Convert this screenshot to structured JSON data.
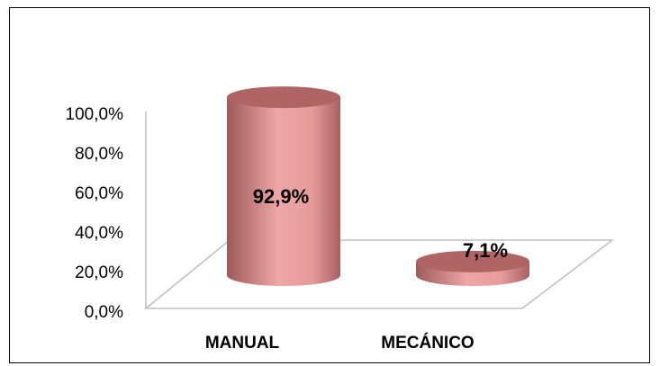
{
  "chart_data": {
    "type": "bar",
    "style": "3d-cylinder",
    "categories": [
      "MANUAL",
      "MECÁNICO"
    ],
    "values": [
      92.9,
      7.1
    ],
    "data_labels": [
      "92,9%",
      "7,1%"
    ],
    "y_ticks": [
      "0,0%",
      "20,0%",
      "40,0%",
      "60,0%",
      "80,0%",
      "100,0%"
    ],
    "ylim": [
      0,
      100
    ],
    "title": "",
    "xlabel": "",
    "ylabel": "",
    "grid": false,
    "legend": "none",
    "colors": {
      "bar_body": "#e59a9a",
      "bar_top": "#b06464",
      "axis": "#bfbfbf"
    }
  }
}
